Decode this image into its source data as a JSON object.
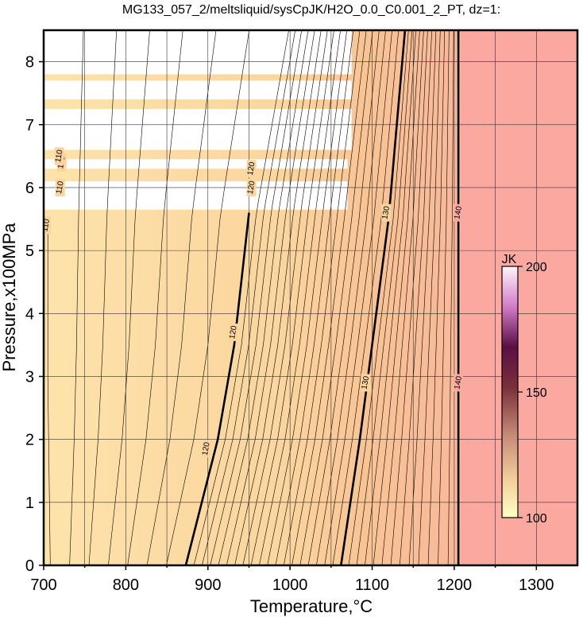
{
  "chart_data": {
    "type": "heatmap",
    "title": "MG133_057_2/meltsliquid/sysCpJK/H2O_0.0_C0.001_2_PT, dz=1:",
    "xlabel": "Temperature,°C",
    "ylabel": "Pressure,x100MPa",
    "xlim": [
      700,
      1350
    ],
    "ylim": [
      0,
      8.5
    ],
    "x_ticks": [
      700,
      800,
      900,
      1000,
      1100,
      1200,
      1300
    ],
    "x_minor_ticks": [
      750,
      850,
      950,
      1050,
      1150,
      1250
    ],
    "y_ticks": [
      0,
      1,
      2,
      3,
      4,
      5,
      6,
      7,
      8
    ],
    "grid": true,
    "colorbar": {
      "title": "JK",
      "min": 100,
      "max": 200,
      "ticks": [
        100,
        150,
        200
      ],
      "colors": [
        "#ffffcc",
        "#f7dfa6",
        "#ef9d7a",
        "#b0344a",
        "#6a0b3e",
        "#d28cd0",
        "#ffffff"
      ],
      "placement": "right-inside"
    },
    "field_colors": {
      "low": "#fde1a6",
      "mid": "#f9c99a",
      "high": "#fbaea0",
      "blank": "#ffffff"
    },
    "blank_regions": [
      {
        "t_max": 1075,
        "p_min": 7.8,
        "p_max": 8.5
      },
      {
        "t_max": 1075,
        "p_min": 7.4,
        "p_max": 7.7
      },
      {
        "t_max": 1075,
        "p_min": 6.6,
        "p_max": 7.25
      },
      {
        "t_max": 1070,
        "p_min": 6.3,
        "p_max": 6.45
      },
      {
        "t_max": 1070,
        "p_min": 5.65,
        "p_max": 6.1
      }
    ],
    "series": [
      {
        "name": "120",
        "bold": true,
        "points": [
          [
            873,
            0
          ],
          [
            912,
            2
          ],
          [
            932,
            3.5
          ],
          [
            950,
            5.6
          ]
        ],
        "labels": [
          [
            898,
            1.85
          ],
          [
            931,
            3.7
          ],
          [
            953,
            6.0
          ],
          [
            953,
            6.3
          ]
        ]
      },
      {
        "name": "130",
        "bold": true,
        "points": [
          [
            1062,
            0
          ],
          [
            1085,
            2
          ],
          [
            1100,
            3.5
          ],
          [
            1120,
            5.5
          ],
          [
            1140,
            8.5
          ]
        ],
        "labels": [
          [
            1092,
            2.9
          ],
          [
            1117,
            5.6
          ]
        ]
      },
      {
        "name": "140",
        "bold": true,
        "points": [
          [
            1205,
            0
          ],
          [
            1205,
            8.5
          ]
        ],
        "labels": [
          [
            1205,
            2.9
          ],
          [
            1205,
            5.6
          ]
        ]
      },
      {
        "name": "110",
        "bold": false,
        "points": [
          [
            708,
            0
          ],
          [
            705,
            3
          ],
          [
            705,
            5.5
          ]
        ],
        "labels": [
          [
            703,
            5.4
          ],
          [
            720,
            6.0
          ],
          [
            722,
            6.4
          ],
          [
            719,
            6.5
          ]
        ]
      }
    ],
    "tick_labels_x": [
      "700",
      "800",
      "900",
      "1000",
      "1100",
      "1200",
      "1300"
    ],
    "tick_labels_y": [
      "0",
      "1",
      "2",
      "3",
      "4",
      "5",
      "6",
      "7",
      "8"
    ]
  }
}
